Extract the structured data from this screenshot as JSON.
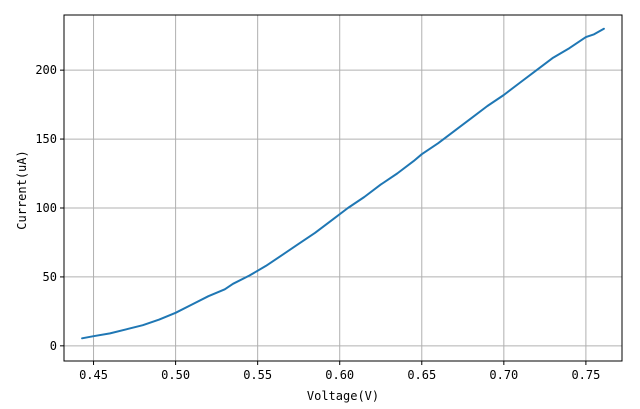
{
  "chart_data": {
    "type": "line",
    "title": "",
    "xlabel": "Voltage(V)",
    "ylabel": "Current(uA)",
    "xlim": [
      0.432,
      0.772
    ],
    "ylim": [
      -11,
      240
    ],
    "grid": true,
    "x_ticks": [
      0.45,
      0.5,
      0.55,
      0.6,
      0.65,
      0.7,
      0.75
    ],
    "x_tick_labels": [
      "0.45",
      "0.50",
      "0.55",
      "0.60",
      "0.65",
      "0.70",
      "0.75"
    ],
    "y_ticks": [
      0,
      50,
      100,
      150,
      200
    ],
    "y_tick_labels": [
      "0",
      "50",
      "100",
      "150",
      "200"
    ],
    "series": [
      {
        "color": "#1f77b4",
        "x": [
          0.443,
          0.45,
          0.46,
          0.47,
          0.48,
          0.49,
          0.5,
          0.51,
          0.52,
          0.53,
          0.535,
          0.545,
          0.555,
          0.565,
          0.575,
          0.585,
          0.595,
          0.605,
          0.615,
          0.625,
          0.635,
          0.645,
          0.65,
          0.66,
          0.67,
          0.68,
          0.69,
          0.7,
          0.71,
          0.72,
          0.73,
          0.74,
          0.75,
          0.755,
          0.761
        ],
        "y": [
          5.5,
          7,
          9,
          12,
          15,
          19,
          24,
          30,
          36,
          41,
          45,
          51,
          58,
          66,
          74,
          82,
          91,
          100,
          108,
          117,
          125,
          134,
          139,
          147,
          156,
          165,
          174,
          182,
          191,
          200,
          209,
          216,
          224,
          226,
          230
        ]
      }
    ]
  }
}
